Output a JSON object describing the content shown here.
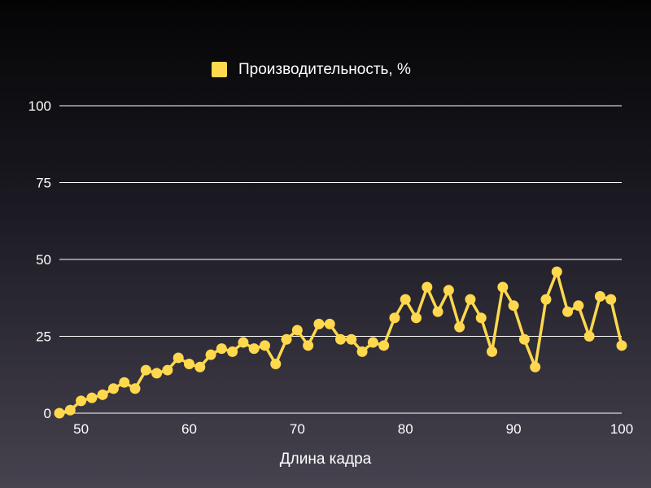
{
  "chart_data": {
    "type": "line",
    "title": "",
    "xlabel": "Длина кадра",
    "ylabel": "",
    "xlim": [
      48,
      100
    ],
    "ylim": [
      0,
      100
    ],
    "x_ticks": [
      50,
      60,
      70,
      80,
      90,
      100
    ],
    "y_ticks": [
      0,
      25,
      50,
      75,
      100
    ],
    "grid": "horizontal",
    "legend_position": "top-center",
    "colors": {
      "series": "#ffd84d",
      "grid": "#ffffff",
      "text": "#ffffff"
    },
    "x": [
      48,
      49,
      50,
      51,
      52,
      53,
      54,
      55,
      56,
      57,
      58,
      59,
      60,
      61,
      62,
      63,
      64,
      65,
      66,
      67,
      68,
      69,
      70,
      71,
      72,
      73,
      74,
      75,
      76,
      77,
      78,
      79,
      80,
      81,
      82,
      83,
      84,
      85,
      86,
      87,
      88,
      89,
      90,
      91,
      92,
      93,
      94,
      95,
      96,
      97,
      98,
      99,
      100
    ],
    "series": [
      {
        "name": "Производительность, %",
        "values": [
          0,
          1,
          4,
          5,
          6,
          8,
          10,
          8,
          14,
          13,
          14,
          18,
          16,
          15,
          19,
          21,
          20,
          23,
          21,
          22,
          16,
          24,
          27,
          22,
          29,
          29,
          24,
          24,
          20,
          23,
          22,
          31,
          37,
          31,
          41,
          33,
          40,
          28,
          37,
          31,
          20,
          41,
          35,
          24,
          15,
          37,
          46,
          33,
          35,
          25,
          38,
          37,
          22
        ]
      }
    ]
  }
}
